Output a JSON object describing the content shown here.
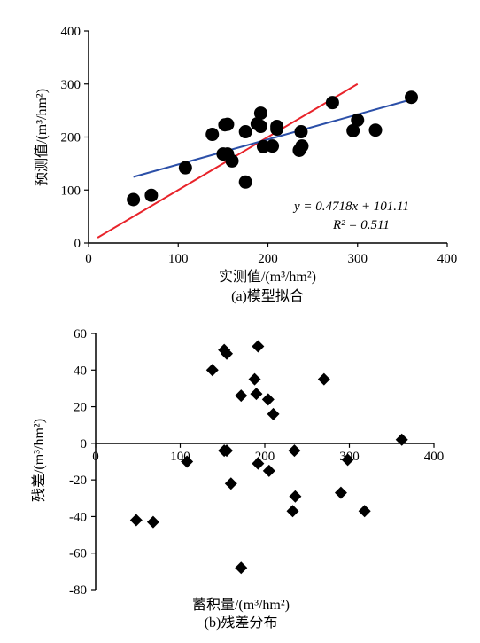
{
  "chart_data": [
    {
      "type": "scatter",
      "caption": "(a)模型拟合",
      "xlabel": "实测值/(m³/hm²)",
      "ylabel": "预测值/(m³/hm²)",
      "xlim": [
        0,
        400
      ],
      "ylim": [
        0,
        400
      ],
      "xticks": [
        "0",
        "100",
        "200",
        "300",
        "400"
      ],
      "yticks": [
        "0",
        "100",
        "200",
        "300",
        "400"
      ],
      "equation": "y = 0.4718x + 101.11",
      "r2": "R² = 0.511",
      "points": [
        [
          50,
          82
        ],
        [
          70,
          90
        ],
        [
          108,
          142
        ],
        [
          138,
          205
        ],
        [
          152,
          223
        ],
        [
          155,
          224
        ],
        [
          150,
          168
        ],
        [
          155,
          168
        ],
        [
          160,
          155
        ],
        [
          175,
          115
        ],
        [
          175,
          210
        ],
        [
          188,
          225
        ],
        [
          192,
          245
        ],
        [
          192,
          220
        ],
        [
          195,
          182
        ],
        [
          205,
          183
        ],
        [
          210,
          220
        ],
        [
          210,
          215
        ],
        [
          235,
          175
        ],
        [
          237,
          210
        ],
        [
          238,
          183
        ],
        [
          272,
          265
        ],
        [
          295,
          212
        ],
        [
          300,
          232
        ],
        [
          320,
          213
        ],
        [
          360,
          275
        ]
      ],
      "fit_line": {
        "color": "#2b4fa8",
        "x": [
          50,
          360
        ],
        "slope": 0.4718,
        "intercept": 101.11
      },
      "ref_line": {
        "color": "#e8232a",
        "x": [
          10,
          300
        ],
        "y": [
          10,
          300
        ]
      }
    },
    {
      "type": "scatter",
      "marker": "diamond",
      "caption": "(b)残差分布",
      "xlabel": "蓄积量/(m³/hm²)",
      "ylabel": "残差/(m³/hm²)",
      "xlim": [
        0,
        400
      ],
      "ylim": [
        -80,
        60
      ],
      "xticks": [
        "0",
        "100",
        "200",
        "300",
        "400"
      ],
      "yticks": [
        "60",
        "40",
        "20",
        "0",
        "-20",
        "-40",
        "-60",
        "-80"
      ],
      "points": [
        [
          48,
          -42
        ],
        [
          68,
          -43
        ],
        [
          108,
          -10
        ],
        [
          138,
          40
        ],
        [
          152,
          51
        ],
        [
          155,
          49
        ],
        [
          152,
          -4
        ],
        [
          155,
          -4
        ],
        [
          160,
          -22
        ],
        [
          172,
          26
        ],
        [
          172,
          -68
        ],
        [
          188,
          35
        ],
        [
          190,
          27
        ],
        [
          192,
          53
        ],
        [
          192,
          -11
        ],
        [
          204,
          24
        ],
        [
          205,
          -15
        ],
        [
          210,
          16
        ],
        [
          233,
          -37
        ],
        [
          235,
          -4
        ],
        [
          236,
          -29
        ],
        [
          270,
          35
        ],
        [
          290,
          -27
        ],
        [
          298,
          -9
        ],
        [
          318,
          -37
        ],
        [
          362,
          2
        ]
      ]
    }
  ]
}
